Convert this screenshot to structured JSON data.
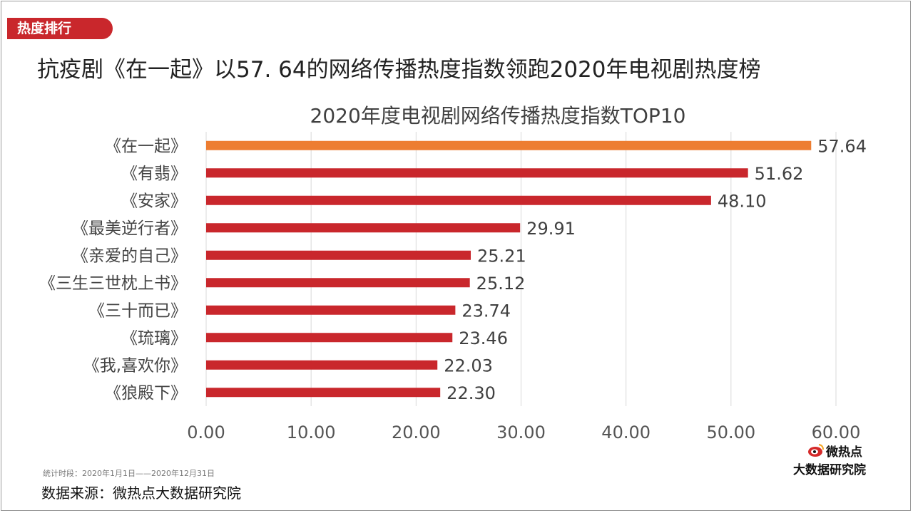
{
  "tag": "热度排行",
  "headline": "抗疫剧《在一起》以57. 64的网络传播热度指数领跑2020年电视剧热度榜",
  "footnote": "统计时段：2020年1月1日——2020年12月31日",
  "source": "数据来源：微热点大数据研究院",
  "logo": {
    "top": "微热点",
    "bottom": "大数据研究院",
    "icon": "weibo-eye-icon"
  },
  "colors": {
    "highlight": "#ed7d31",
    "bar": "#c9272c",
    "tag": "#c9272c",
    "grid": "#d9d9d9"
  },
  "chart_data": {
    "type": "bar",
    "orientation": "horizontal",
    "title": "2020年度电视剧网络传播热度指数TOP10",
    "categories": [
      "《在一起》",
      "《有翡》",
      "《安家》",
      "《最美逆行者》",
      "《亲爱的自己》",
      "《三生三世枕上书》",
      "《三十而已》",
      "《琉璃》",
      "《我,喜欢你》",
      "《狼殿下》"
    ],
    "values": [
      57.64,
      51.62,
      48.1,
      29.91,
      25.21,
      25.12,
      23.74,
      23.46,
      22.03,
      22.3
    ],
    "value_labels": [
      "57.64",
      "51.62",
      "48.10",
      "29.91",
      "25.21",
      "25.12",
      "23.74",
      "23.46",
      "22.03",
      "22.30"
    ],
    "highlight_index": 0,
    "xlim": [
      0,
      60
    ],
    "xticks": [
      "0.00",
      "10.00",
      "20.00",
      "30.00",
      "40.00",
      "50.00",
      "60.00"
    ],
    "grid": "vertical",
    "legend": "none"
  }
}
